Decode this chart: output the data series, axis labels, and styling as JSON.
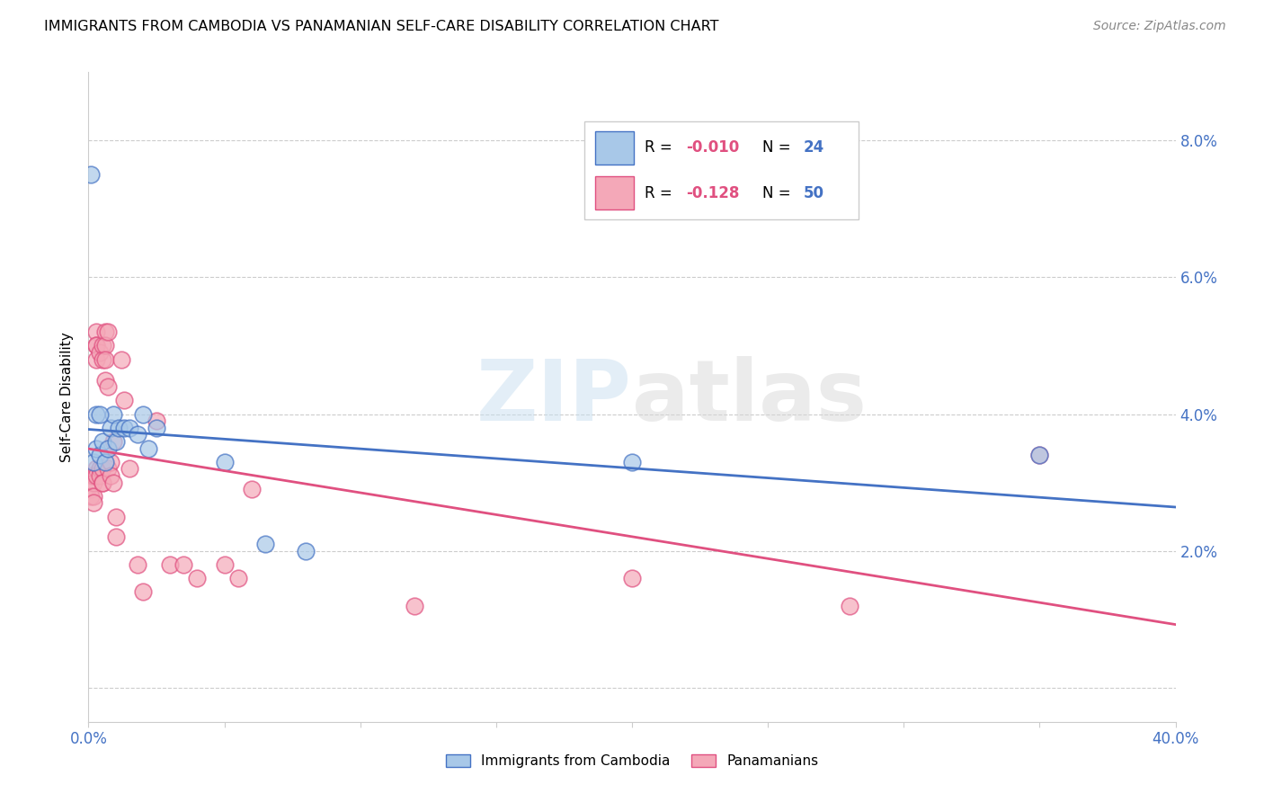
{
  "title": "IMMIGRANTS FROM CAMBODIA VS PANAMANIAN SELF-CARE DISABILITY CORRELATION CHART",
  "source": "Source: ZipAtlas.com",
  "ylabel": "Self-Care Disability",
  "xlim": [
    0.0,
    0.4
  ],
  "ylim": [
    -0.005,
    0.09
  ],
  "yticks": [
    0.0,
    0.02,
    0.04,
    0.06,
    0.08
  ],
  "ytick_labels": [
    "",
    "2.0%",
    "4.0%",
    "6.0%",
    "8.0%"
  ],
  "xticks": [
    0.0,
    0.05,
    0.1,
    0.15,
    0.2,
    0.25,
    0.3,
    0.35,
    0.4
  ],
  "xtick_labels": [
    "0.0%",
    "",
    "",
    "",
    "",
    "",
    "",
    "",
    "40.0%"
  ],
  "legend1_r": "-0.010",
  "legend1_n": "24",
  "legend2_r": "-0.128",
  "legend2_n": "50",
  "blue_color": "#a8c8e8",
  "pink_color": "#f4a8b8",
  "line_blue": "#4472c4",
  "line_pink": "#e05080",
  "watermark_zip": "ZIP",
  "watermark_atlas": "atlas",
  "blue_x": [
    0.002,
    0.003,
    0.004,
    0.005,
    0.006,
    0.007,
    0.008,
    0.009,
    0.01,
    0.011,
    0.013,
    0.015,
    0.018,
    0.02,
    0.022,
    0.05,
    0.065,
    0.2,
    0.001,
    0.35,
    0.003,
    0.004,
    0.08,
    0.025
  ],
  "blue_y": [
    0.033,
    0.035,
    0.034,
    0.036,
    0.033,
    0.035,
    0.038,
    0.04,
    0.036,
    0.038,
    0.038,
    0.038,
    0.037,
    0.04,
    0.035,
    0.033,
    0.021,
    0.033,
    0.075,
    0.034,
    0.04,
    0.04,
    0.02,
    0.038
  ],
  "pink_x": [
    0.001,
    0.001,
    0.001,
    0.002,
    0.002,
    0.002,
    0.002,
    0.003,
    0.003,
    0.003,
    0.003,
    0.003,
    0.003,
    0.004,
    0.004,
    0.004,
    0.005,
    0.005,
    0.005,
    0.005,
    0.005,
    0.006,
    0.006,
    0.006,
    0.006,
    0.007,
    0.007,
    0.007,
    0.008,
    0.008,
    0.009,
    0.009,
    0.01,
    0.01,
    0.012,
    0.013,
    0.015,
    0.018,
    0.02,
    0.025,
    0.03,
    0.035,
    0.04,
    0.05,
    0.055,
    0.06,
    0.12,
    0.2,
    0.28,
    0.35
  ],
  "pink_y": [
    0.031,
    0.029,
    0.028,
    0.031,
    0.03,
    0.028,
    0.027,
    0.052,
    0.05,
    0.05,
    0.048,
    0.032,
    0.031,
    0.049,
    0.032,
    0.031,
    0.05,
    0.048,
    0.032,
    0.03,
    0.03,
    0.052,
    0.05,
    0.048,
    0.045,
    0.052,
    0.044,
    0.032,
    0.033,
    0.031,
    0.036,
    0.03,
    0.025,
    0.022,
    0.048,
    0.042,
    0.032,
    0.018,
    0.014,
    0.039,
    0.018,
    0.018,
    0.016,
    0.018,
    0.016,
    0.029,
    0.012,
    0.016,
    0.012,
    0.034
  ],
  "legend_blue_label": "Immigrants from Cambodia",
  "legend_pink_label": "Panamanians"
}
